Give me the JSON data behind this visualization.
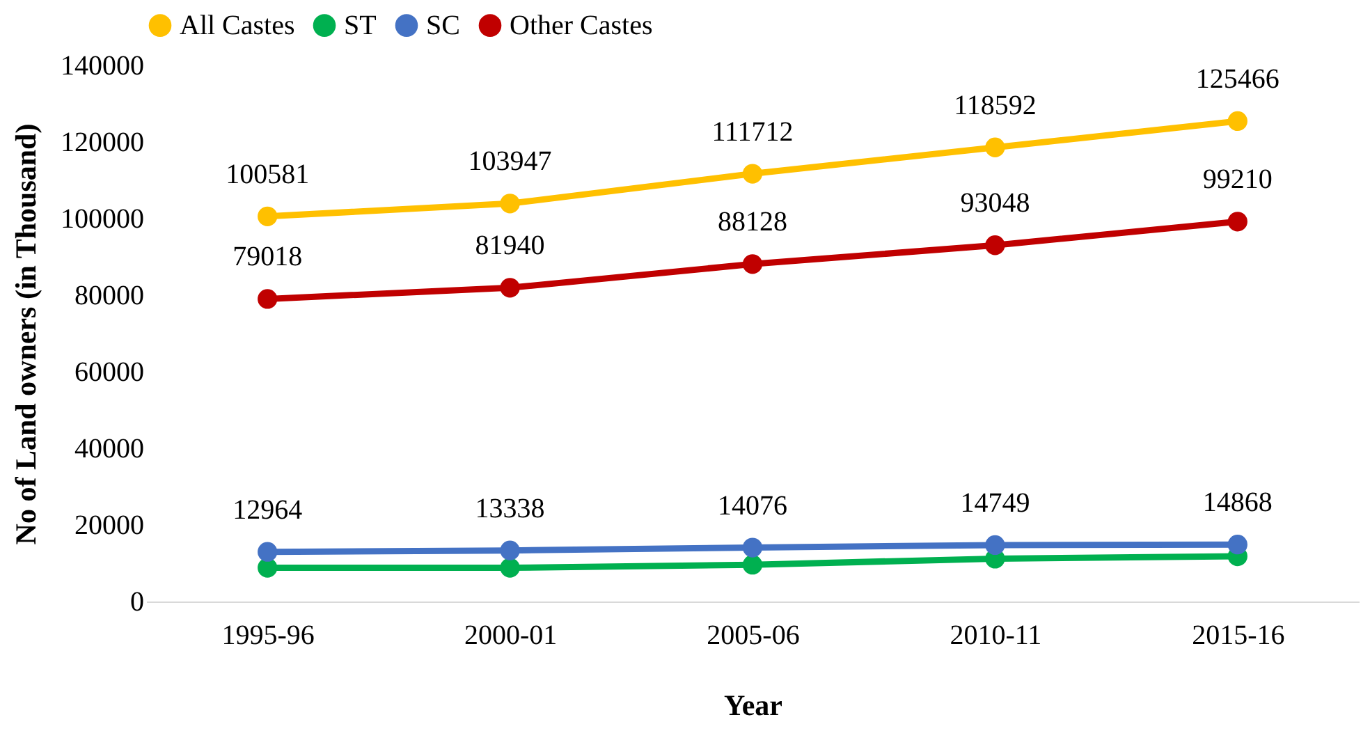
{
  "chart_data": {
    "type": "line",
    "xlabel": "Year",
    "ylabel": "No of Land owners (in Thousand)",
    "categories": [
      "1995-96",
      "2000-01",
      "2005-06",
      "2010-11",
      "2015-16"
    ],
    "series": [
      {
        "name": "All Castes",
        "color": "#ffc000",
        "values": [
          100581,
          103947,
          111712,
          118592,
          125466
        ],
        "value_labels": [
          "100581",
          "103947",
          "111712",
          "118592",
          "125466"
        ]
      },
      {
        "name": "ST",
        "color": "#00b050",
        "values": [
          8800,
          8800,
          9600,
          11200,
          11800
        ]
      },
      {
        "name": "SC",
        "color": "#4472c4",
        "values": [
          12964,
          13338,
          14076,
          14749,
          14868
        ],
        "value_labels": [
          "12964",
          "13338",
          "14076",
          "14749",
          "14868"
        ]
      },
      {
        "name": "Other Castes",
        "color": "#c00000",
        "values": [
          79018,
          81940,
          88128,
          93048,
          99210
        ],
        "value_labels": [
          "79018",
          "81940",
          "88128",
          "93048",
          "99210"
        ]
      }
    ],
    "ylim": [
      0,
      140000
    ],
    "yticks": [
      0,
      20000,
      40000,
      60000,
      80000,
      100000,
      120000,
      140000
    ],
    "grid": false,
    "legend": "top",
    "marker": "circle",
    "line_style": "solid"
  }
}
